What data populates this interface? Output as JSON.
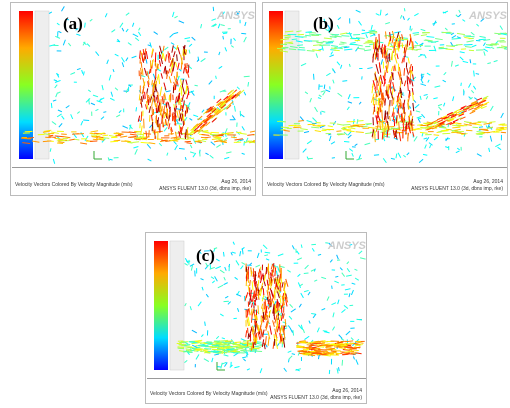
{
  "panels": [
    {
      "label": "(a)",
      "logo": "ANSYS",
      "caption": "Velocity Vectors Colored By Velocity Magnitude (m/s)",
      "date": "Aug 26, 2014",
      "software": "ANSYS FLUENT 13.0 (3d, dbns imp, rke)"
    },
    {
      "label": "(b)",
      "logo": "ANSYS",
      "caption": "Velocity Vectors Colored By Velocity Magnitude (m/s)",
      "date": "Aug 26, 2014",
      "software": "ANSYS FLUENT 13.0 (3d, dbns imp, rke)"
    },
    {
      "label": "(c)",
      "logo": "ANSYS",
      "caption": "Velocity Vectors Colored By Velocity Magnitude (m/s)",
      "date": "Aug 26, 2014",
      "software": "ANSYS FLUENT 13.0 (3d, dbns imp, rke)"
    }
  ]
}
